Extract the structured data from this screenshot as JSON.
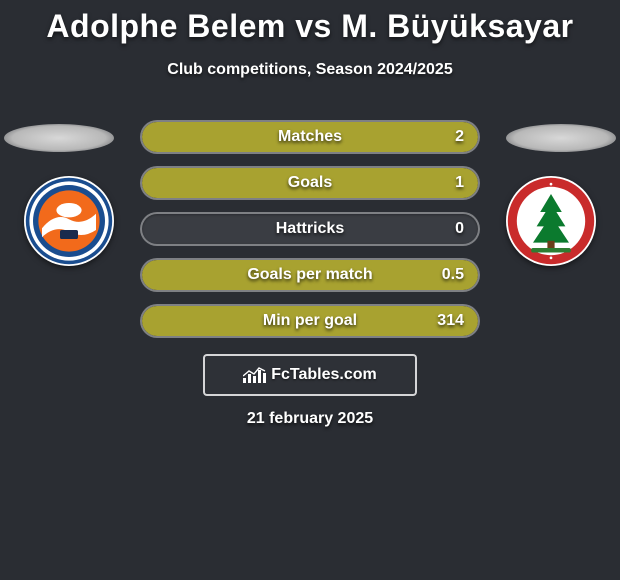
{
  "background_color": "#2a2d33",
  "title": {
    "text": "Adolphe Belem vs M. Büyüksayar",
    "fontsize": 32,
    "color": "#ffffff"
  },
  "subtitle": {
    "text": "Club competitions, Season 2024/2025",
    "fontsize": 16,
    "color": "#ffffff"
  },
  "rows": [
    {
      "label": "Matches",
      "value": "2",
      "fill_pct": 100,
      "fill_color": "#a8a230",
      "bg_color": "#3a3d43"
    },
    {
      "label": "Goals",
      "value": "1",
      "fill_pct": 100,
      "fill_color": "#a8a230",
      "bg_color": "#3a3d43"
    },
    {
      "label": "Hattricks",
      "value": "0",
      "fill_pct": 0,
      "fill_color": "#a8a230",
      "bg_color": "#3a3d43"
    },
    {
      "label": "Goals per match",
      "value": "0.5",
      "fill_pct": 100,
      "fill_color": "#a8a230",
      "bg_color": "#3a3d43"
    },
    {
      "label": "Min per goal",
      "value": "314",
      "fill_pct": 100,
      "fill_color": "#a8a230",
      "bg_color": "#3a3d43"
    }
  ],
  "row_style": {
    "height": 34,
    "border_radius": 17,
    "border_color": "rgba(255,255,255,0.35)",
    "label_fontsize": 16,
    "value_fontsize": 16,
    "text_color": "#ffffff"
  },
  "left_team": {
    "name": "Adanaspor",
    "badge_bg": "#ffffff",
    "ring_colors": [
      "#1a4d8f",
      "#ffffff"
    ],
    "center_color": "#f26a1b"
  },
  "right_team": {
    "name": "Ümraniyespor",
    "badge_bg": "#ffffff",
    "ring_color": "#c92b2b",
    "tree_color": "#0b7a2e",
    "base_color": "#2e7d32"
  },
  "brand": {
    "text": "FcTables.com",
    "box_border": "rgba(255,255,255,0.8)",
    "icon_color": "#ffffff"
  },
  "date": {
    "text": "21 february 2025",
    "fontsize": 16,
    "color": "#ffffff"
  }
}
